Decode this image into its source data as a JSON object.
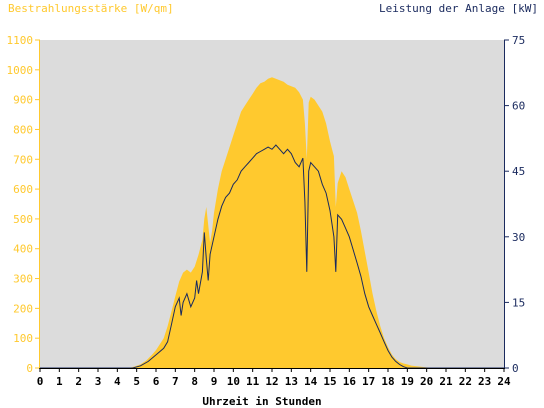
{
  "chart_data": {
    "type": "area",
    "left_axis_title": "Bestrahlungsstärke [W/qm]",
    "right_axis_title": "Leistung der Anlage [kW]",
    "xlabel": "Uhrzeit in Stunden",
    "x_ticks": [
      "0",
      "1",
      "2",
      "3",
      "4",
      "5",
      "6",
      "7",
      "8",
      "9",
      "10",
      "11",
      "12",
      "13",
      "14",
      "15",
      "16",
      "17",
      "18",
      "19",
      "20",
      "21",
      "22",
      "23",
      "24"
    ],
    "left_ticks": [
      "0",
      "100",
      "200",
      "300",
      "400",
      "500",
      "600",
      "700",
      "800",
      "900",
      "1000",
      "1100"
    ],
    "right_ticks": [
      "0",
      "15",
      "30",
      "45",
      "60",
      "75"
    ],
    "xlim": [
      0,
      24
    ],
    "left_ylim": [
      0,
      1100
    ],
    "right_ylim": [
      0,
      75
    ],
    "grid": false,
    "colors": {
      "irradiance_fill": "#ffc92e",
      "power_line": "#1a2a5e",
      "plot_bg": "#dcdcdc",
      "left_axis": "#ffc92e",
      "right_axis": "#1a2a5e"
    },
    "series": [
      {
        "axis": "left",
        "style": "area",
        "points": [
          [
            0,
            0
          ],
          [
            4.6,
            0
          ],
          [
            4.9,
            5
          ],
          [
            5.2,
            12
          ],
          [
            5.5,
            25
          ],
          [
            5.8,
            45
          ],
          [
            6.0,
            60
          ],
          [
            6.2,
            80
          ],
          [
            6.4,
            100
          ],
          [
            6.6,
            140
          ],
          [
            6.8,
            190
          ],
          [
            7.0,
            240
          ],
          [
            7.2,
            290
          ],
          [
            7.4,
            320
          ],
          [
            7.6,
            330
          ],
          [
            7.8,
            320
          ],
          [
            8.0,
            340
          ],
          [
            8.2,
            380
          ],
          [
            8.4,
            430
          ],
          [
            8.5,
            500
          ],
          [
            8.6,
            540
          ],
          [
            8.7,
            480
          ],
          [
            8.8,
            420
          ],
          [
            8.9,
            460
          ],
          [
            9.0,
            520
          ],
          [
            9.2,
            600
          ],
          [
            9.4,
            660
          ],
          [
            9.6,
            700
          ],
          [
            9.8,
            740
          ],
          [
            10.0,
            780
          ],
          [
            10.2,
            820
          ],
          [
            10.4,
            860
          ],
          [
            10.6,
            880
          ],
          [
            10.8,
            900
          ],
          [
            11.0,
            920
          ],
          [
            11.2,
            940
          ],
          [
            11.4,
            955
          ],
          [
            11.6,
            960
          ],
          [
            11.8,
            970
          ],
          [
            12.0,
            975
          ],
          [
            12.2,
            970
          ],
          [
            12.4,
            965
          ],
          [
            12.6,
            960
          ],
          [
            12.8,
            950
          ],
          [
            13.0,
            945
          ],
          [
            13.2,
            940
          ],
          [
            13.4,
            925
          ],
          [
            13.6,
            900
          ],
          [
            13.7,
            820
          ],
          [
            13.8,
            700
          ],
          [
            13.9,
            890
          ],
          [
            14.0,
            910
          ],
          [
            14.2,
            900
          ],
          [
            14.4,
            880
          ],
          [
            14.6,
            860
          ],
          [
            14.8,
            820
          ],
          [
            15.0,
            760
          ],
          [
            15.2,
            710
          ],
          [
            15.3,
            540
          ],
          [
            15.4,
            620
          ],
          [
            15.6,
            660
          ],
          [
            15.8,
            640
          ],
          [
            16.0,
            600
          ],
          [
            16.2,
            560
          ],
          [
            16.4,
            520
          ],
          [
            16.6,
            460
          ],
          [
            16.8,
            390
          ],
          [
            17.0,
            320
          ],
          [
            17.2,
            250
          ],
          [
            17.4,
            190
          ],
          [
            17.6,
            140
          ],
          [
            17.8,
            100
          ],
          [
            18.0,
            70
          ],
          [
            18.2,
            45
          ],
          [
            18.4,
            30
          ],
          [
            18.6,
            20
          ],
          [
            18.8,
            15
          ],
          [
            19.0,
            12
          ],
          [
            19.2,
            8
          ],
          [
            19.6,
            5
          ],
          [
            20.0,
            2
          ],
          [
            20.4,
            0
          ],
          [
            24,
            0
          ]
        ]
      },
      {
        "axis": "right",
        "style": "line",
        "points": [
          [
            0,
            0
          ],
          [
            4.8,
            0
          ],
          [
            5.2,
            0.5
          ],
          [
            5.6,
            1.5
          ],
          [
            6.0,
            3
          ],
          [
            6.4,
            4.5
          ],
          [
            6.6,
            6
          ],
          [
            6.8,
            10
          ],
          [
            7.0,
            14
          ],
          [
            7.2,
            16
          ],
          [
            7.3,
            12
          ],
          [
            7.4,
            15
          ],
          [
            7.6,
            17
          ],
          [
            7.8,
            14
          ],
          [
            8.0,
            16
          ],
          [
            8.1,
            20
          ],
          [
            8.2,
            17
          ],
          [
            8.4,
            22
          ],
          [
            8.5,
            31
          ],
          [
            8.6,
            25
          ],
          [
            8.7,
            20
          ],
          [
            8.8,
            26
          ],
          [
            9.0,
            30
          ],
          [
            9.2,
            34
          ],
          [
            9.4,
            37
          ],
          [
            9.6,
            39
          ],
          [
            9.8,
            40
          ],
          [
            10.0,
            42
          ],
          [
            10.2,
            43
          ],
          [
            10.4,
            45
          ],
          [
            10.6,
            46
          ],
          [
            10.8,
            47
          ],
          [
            11.0,
            48
          ],
          [
            11.2,
            49
          ],
          [
            11.4,
            49.5
          ],
          [
            11.6,
            50
          ],
          [
            11.8,
            50.5
          ],
          [
            12.0,
            50
          ],
          [
            12.2,
            51
          ],
          [
            12.4,
            50
          ],
          [
            12.6,
            49
          ],
          [
            12.8,
            50
          ],
          [
            13.0,
            49
          ],
          [
            13.2,
            47
          ],
          [
            13.4,
            46
          ],
          [
            13.6,
            48
          ],
          [
            13.7,
            38
          ],
          [
            13.8,
            22
          ],
          [
            13.9,
            45
          ],
          [
            14.0,
            47
          ],
          [
            14.2,
            46
          ],
          [
            14.4,
            45
          ],
          [
            14.6,
            42
          ],
          [
            14.8,
            40
          ],
          [
            15.0,
            36
          ],
          [
            15.2,
            30
          ],
          [
            15.3,
            22
          ],
          [
            15.4,
            35
          ],
          [
            15.6,
            34
          ],
          [
            15.8,
            32
          ],
          [
            16.0,
            30
          ],
          [
            16.2,
            27
          ],
          [
            16.4,
            24
          ],
          [
            16.6,
            21
          ],
          [
            16.8,
            17
          ],
          [
            17.0,
            14
          ],
          [
            17.2,
            12
          ],
          [
            17.4,
            10
          ],
          [
            17.6,
            8
          ],
          [
            17.8,
            6
          ],
          [
            18.0,
            4
          ],
          [
            18.2,
            2.5
          ],
          [
            18.4,
            1.5
          ],
          [
            18.6,
            0.8
          ],
          [
            18.8,
            0.3
          ],
          [
            19.0,
            0
          ],
          [
            24,
            0
          ]
        ]
      }
    ]
  }
}
